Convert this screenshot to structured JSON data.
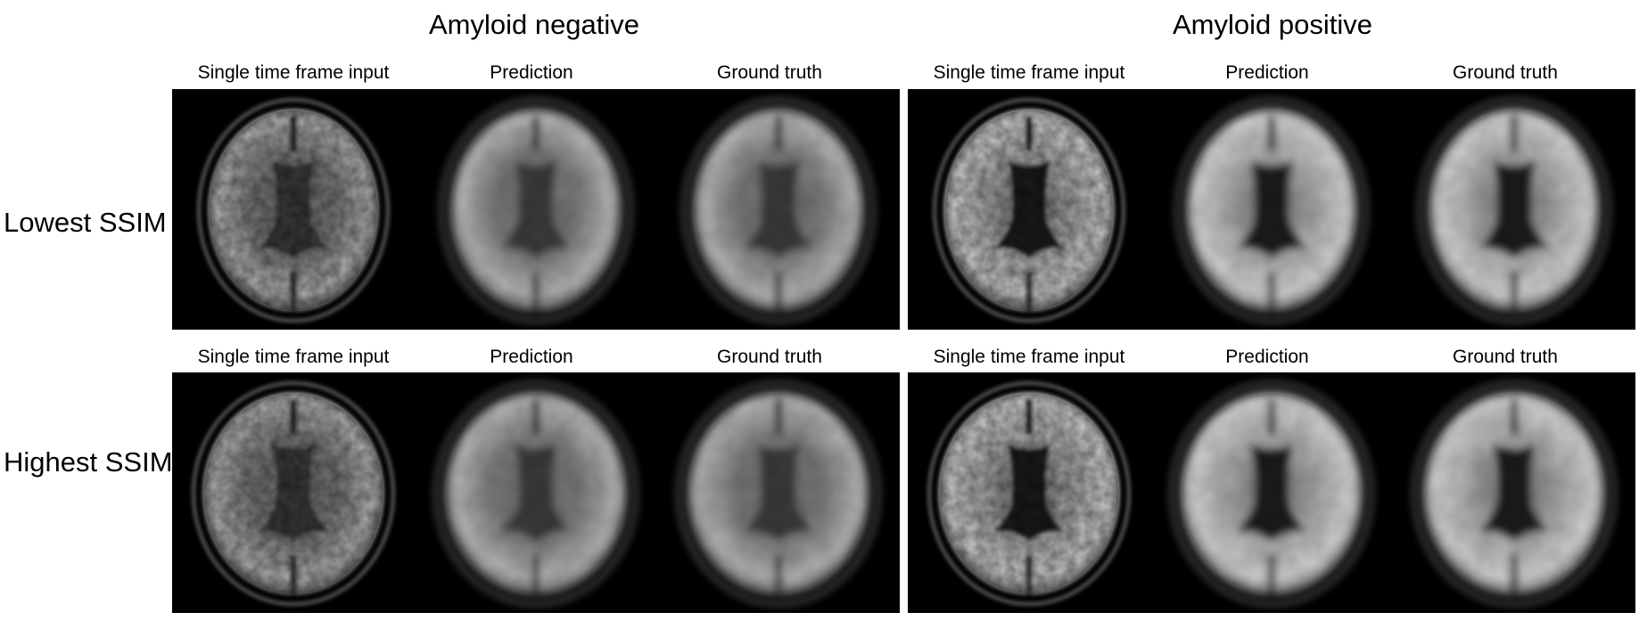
{
  "groups": [
    {
      "title": "Amyloid negative",
      "type": "negative"
    },
    {
      "title": "Amyloid positive",
      "type": "positive"
    }
  ],
  "columns": [
    "Single time frame input",
    "Prediction",
    "Ground truth"
  ],
  "rows": [
    {
      "label": "Lowest SSIM"
    },
    {
      "label": "Highest SSIM"
    }
  ],
  "colors": {
    "background": "#000000",
    "tissue": "#c8c8c8",
    "ventricle": "#2a2a2a"
  }
}
